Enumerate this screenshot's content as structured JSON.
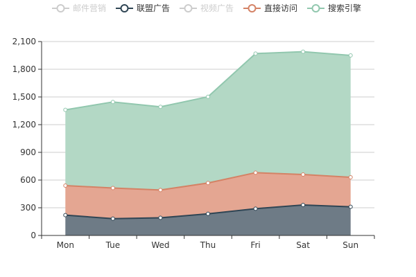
{
  "chart_data": {
    "type": "area",
    "stacked": true,
    "categories": [
      "Mon",
      "Tue",
      "Wed",
      "Thu",
      "Fri",
      "Sat",
      "Sun"
    ],
    "ylim": [
      0,
      2100
    ],
    "yticks": [
      "0",
      "300",
      "600",
      "900",
      "1,200",
      "1,500",
      "1,800",
      "2,100"
    ],
    "grid": true,
    "legend_position": "top-center",
    "series": [
      {
        "name": "邮件营销",
        "values": [
          0,
          0,
          0,
          0,
          0,
          0,
          0
        ],
        "visible": false,
        "color": "#cccccc"
      },
      {
        "name": "联盟广告",
        "values": [
          220,
          182,
          191,
          234,
          290,
          330,
          310
        ],
        "visible": true,
        "color": "#2f4554",
        "fill": "#6e7b86"
      },
      {
        "name": "视频广告",
        "values": [
          0,
          0,
          0,
          0,
          0,
          0,
          0
        ],
        "visible": false,
        "color": "#cccccc"
      },
      {
        "name": "直接访问",
        "values": [
          320,
          332,
          301,
          334,
          390,
          330,
          320
        ],
        "visible": true,
        "color": "#d48265",
        "fill": "#e4a692"
      },
      {
        "name": "搜索引擎",
        "values": [
          820,
          932,
          901,
          934,
          1290,
          1330,
          1320
        ],
        "visible": true,
        "color": "#91c7ae",
        "fill": "#b3d8c5"
      }
    ]
  }
}
